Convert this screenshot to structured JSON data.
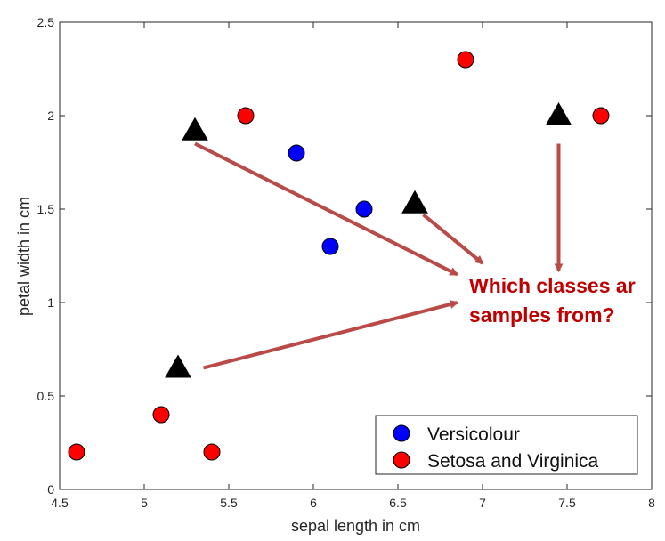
{
  "chart_data": {
    "type": "scatter",
    "title": "",
    "xlabel": "sepal length in cm",
    "ylabel": "petal width in cm",
    "xlim": [
      4.5,
      8
    ],
    "ylim": [
      0,
      2.5
    ],
    "xticks": [
      4.5,
      5,
      5.5,
      6,
      6.5,
      7,
      7.5,
      8
    ],
    "xtick_labels": [
      "4.5",
      "5",
      "5.5",
      "6",
      "6.5",
      "7",
      "7.5",
      "8"
    ],
    "yticks": [
      0,
      0.5,
      1,
      1.5,
      2,
      2.5
    ],
    "ytick_labels": [
      "0",
      "0.5",
      "1",
      "1.5",
      "2",
      "2.5"
    ],
    "grid": false,
    "legend_position": "bottom-right",
    "series": [
      {
        "name": "Versicolour",
        "color": "#0000ff",
        "marker": "circle",
        "points": [
          [
            5.9,
            1.8
          ],
          [
            6.1,
            1.3
          ],
          [
            6.3,
            1.5
          ]
        ]
      },
      {
        "name": "Setosa and Virginica",
        "color": "#ff0000",
        "marker": "circle",
        "points": [
          [
            4.6,
            0.2
          ],
          [
            5.1,
            0.4
          ],
          [
            5.4,
            0.2
          ],
          [
            5.6,
            2.0
          ],
          [
            6.9,
            2.3
          ],
          [
            7.7,
            2.0
          ]
        ]
      },
      {
        "color": "#000000",
        "marker": "triangle",
        "points": [
          [
            5.2,
            0.65
          ],
          [
            5.3,
            1.92
          ],
          [
            6.6,
            1.53
          ],
          [
            7.45,
            2.0
          ]
        ]
      }
    ],
    "annotation": {
      "lines": [
        "Which classes ar",
        "samples from?"
      ],
      "color": "#c00000",
      "arrow_color": "#b94a48",
      "arrows": [
        {
          "from": [
            5.3,
            1.85
          ],
          "to": [
            6.85,
            1.15
          ]
        },
        {
          "from": [
            6.65,
            1.47
          ],
          "to": [
            7.0,
            1.21
          ]
        },
        {
          "from": [
            7.45,
            1.85
          ],
          "to": [
            7.45,
            1.17
          ]
        },
        {
          "from": [
            5.35,
            0.65
          ],
          "to": [
            6.85,
            1.0
          ]
        }
      ]
    }
  }
}
